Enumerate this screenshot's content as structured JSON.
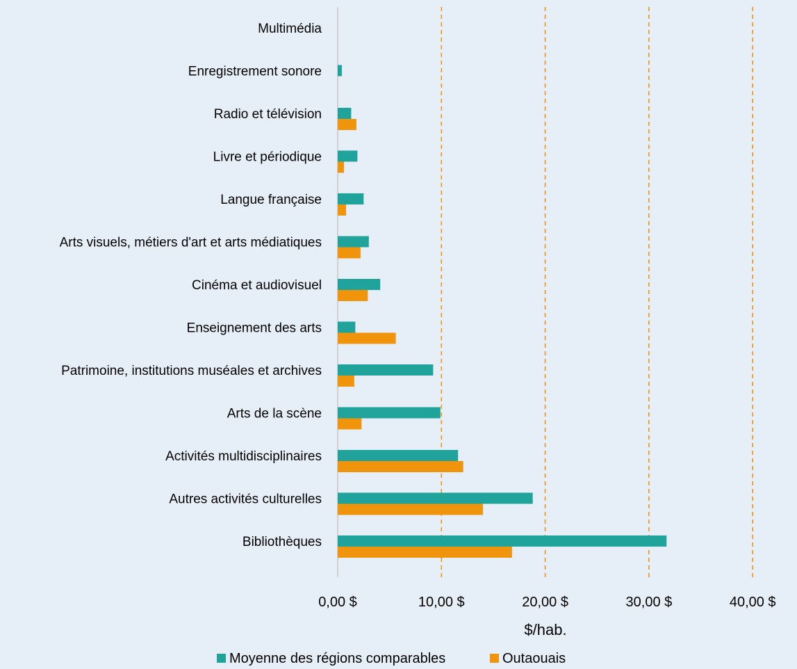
{
  "colors": {
    "background": "#e6eff8",
    "series_teal": "#1fa39b",
    "series_orange": "#f0940c",
    "gridline": "#f0940c",
    "axis": "#d0d0d0",
    "text": "#000000"
  },
  "chart_data": {
    "type": "bar",
    "orientation": "horizontal",
    "title": "",
    "xlabel": "$/hab.",
    "ylabel": "",
    "xlim": [
      0,
      40
    ],
    "grid": "vertical dashed gridlines",
    "legend_position": "bottom",
    "x_tick_labels": [
      "0,00 $",
      "10,00 $",
      "20,00 $",
      "30,00 $",
      "40,00 $"
    ],
    "categories": [
      "Multimédia",
      "Enregistrement sonore",
      "Radio et télévision",
      "Livre et périodique",
      "Langue française",
      "Arts visuels, métiers d'art et arts médiatiques",
      "Cinéma et audiovisuel",
      "Enseignement des arts",
      "Patrimoine, institutions muséales et archives",
      "Arts de la scène",
      "Activités multidisciplinaires",
      "Autres activités culturelles",
      "Bibliothèques"
    ],
    "series": [
      {
        "name": "Moyenne des régions comparables",
        "color": "#1fa39b",
        "values": [
          0,
          0.4,
          1.3,
          1.9,
          2.5,
          3.0,
          4.1,
          1.7,
          9.2,
          9.9,
          11.6,
          18.8,
          31.7
        ]
      },
      {
        "name": "Outaouais",
        "color": "#f0940c",
        "values": [
          0,
          0,
          1.8,
          0.6,
          0.8,
          2.2,
          2.9,
          5.6,
          1.6,
          2.3,
          12.1,
          14.0,
          16.8
        ]
      }
    ]
  }
}
